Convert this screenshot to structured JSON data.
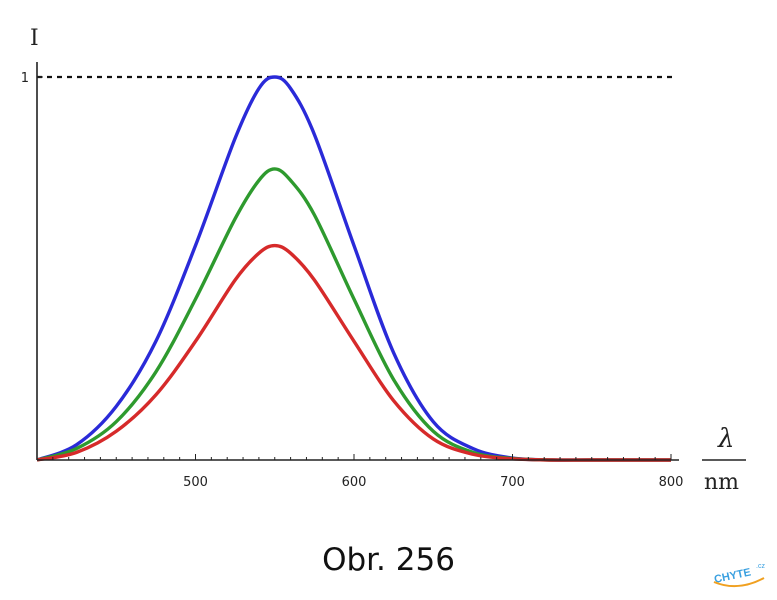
{
  "chart_data": {
    "type": "line",
    "ylabel": "I",
    "xlabel_numerator": "λ",
    "xlabel_denominator": "nm",
    "xlim": [
      400,
      800
    ],
    "ylim": [
      0,
      1
    ],
    "x_ticks": [
      500,
      600,
      700,
      800
    ],
    "y_ticks": [
      1
    ],
    "reference_line": {
      "y": 1,
      "style": "dashed"
    },
    "series": [
      {
        "color": "#2a2ad8",
        "x": [
          400,
          425,
          450,
          475,
          500,
          525,
          540,
          550,
          560,
          575,
          600,
          625,
          650,
          675,
          700,
          725,
          750,
          800
        ],
        "y": [
          0.0,
          0.04,
          0.14,
          0.31,
          0.56,
          0.84,
          0.97,
          1.0,
          0.97,
          0.85,
          0.56,
          0.28,
          0.1,
          0.03,
          0.005,
          0.0,
          0.0,
          0.0
        ]
      },
      {
        "color": "#2e9a2e",
        "x": [
          400,
          425,
          450,
          475,
          500,
          525,
          540,
          550,
          560,
          575,
          600,
          625,
          650,
          675,
          700,
          725,
          750,
          800
        ],
        "y": [
          0.0,
          0.03,
          0.1,
          0.23,
          0.42,
          0.63,
          0.73,
          0.76,
          0.73,
          0.64,
          0.42,
          0.21,
          0.075,
          0.02,
          0.004,
          0.0,
          0.0,
          0.0
        ]
      },
      {
        "color": "#d62a2a",
        "x": [
          400,
          425,
          450,
          475,
          500,
          525,
          540,
          550,
          560,
          575,
          600,
          625,
          650,
          675,
          700,
          725,
          750,
          800
        ],
        "y": [
          0.0,
          0.02,
          0.075,
          0.17,
          0.31,
          0.47,
          0.54,
          0.56,
          0.54,
          0.47,
          0.31,
          0.155,
          0.055,
          0.015,
          0.003,
          0.0,
          0.0,
          0.0
        ]
      }
    ]
  },
  "caption": "Obr. 256",
  "logo": {
    "text": "CHYTE",
    "suffix": ".cz",
    "colors": [
      "#3aa0e0",
      "#f0a020"
    ]
  }
}
